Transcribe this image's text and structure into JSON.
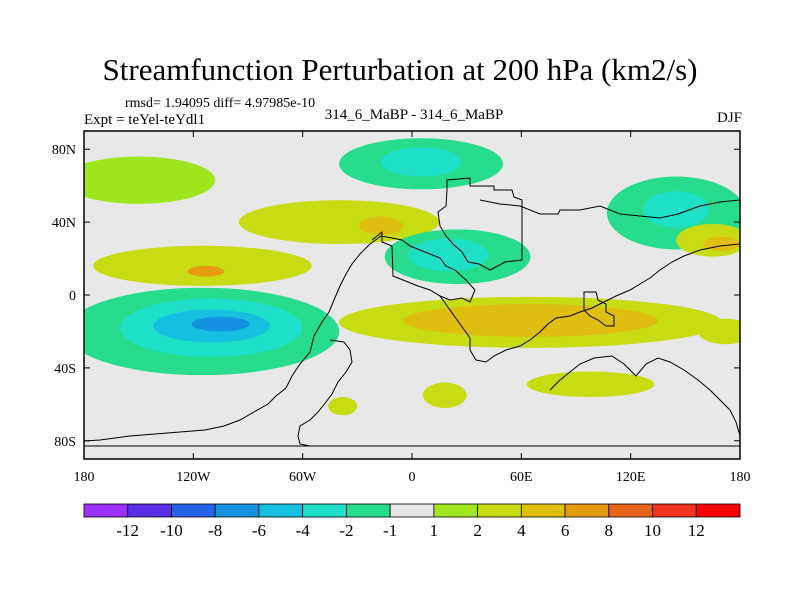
{
  "chart_data": {
    "type": "heatmap",
    "title": "Streamfunction Perturbation at 200 hPa (km2/s)",
    "stats_text": "rmsd= 1.94095 diff= 4.97985e-10",
    "left_label": "Expt = teYel-teYdl1",
    "center_label": "314_6_MaBP - 314_6_MaBP",
    "right_label": "DJF",
    "x_axis": {
      "range": [
        -180,
        180
      ],
      "ticks": [
        -180,
        -120,
        -60,
        0,
        60,
        120,
        180
      ],
      "tick_labels": [
        "180",
        "120W",
        "60W",
        "0",
        "60E",
        "120E",
        "180"
      ]
    },
    "y_axis": {
      "range": [
        -90,
        90
      ],
      "ticks": [
        80,
        40,
        0,
        -40,
        -80
      ],
      "tick_labels": [
        "80N",
        "40N",
        "0",
        "40S",
        "80S"
      ]
    },
    "colorbar": {
      "labels": [
        "-12",
        "-10",
        "-8",
        "-6",
        "-4",
        "-2",
        "-1",
        "1",
        "2",
        "4",
        "6",
        "8",
        "10",
        "12"
      ],
      "colors": [
        "#9b30ff",
        "#5a2ee6",
        "#2463e8",
        "#1490e0",
        "#17bfe0",
        "#1ee0c8",
        "#27dc8c",
        "#e8e8e8",
        "#a0e61e",
        "#c8dc14",
        "#e0be10",
        "#e69a10",
        "#e8641a",
        "#f0321e",
        "#ff0000"
      ]
    },
    "features": [
      {
        "name": "north-pacific-positive",
        "level": "1",
        "lon": -150,
        "lat": 63,
        "rx": 42,
        "ry": 13
      },
      {
        "name": "north-atlantic-positive",
        "level": "2",
        "lon": -40,
        "lat": 40,
        "rx": 55,
        "ry": 12
      },
      {
        "name": "north-atlantic-core",
        "level": "4",
        "lon": -17,
        "lat": 38,
        "rx": 12,
        "ry": 5
      },
      {
        "name": "tropical-pacific-positive",
        "level": "2",
        "lon": -115,
        "lat": 16,
        "rx": 60,
        "ry": 11
      },
      {
        "name": "tropical-pacific-core",
        "level": "6",
        "lon": -113,
        "lat": 13,
        "rx": 10,
        "ry": 3
      },
      {
        "name": "arctic-negative",
        "level": "-1",
        "lon": 5,
        "lat": 72,
        "rx": 45,
        "ry": 14
      },
      {
        "name": "arctic-core",
        "level": "-2",
        "lon": 5,
        "lat": 73,
        "rx": 22,
        "ry": 8
      },
      {
        "name": "africa-negative",
        "level": "-1",
        "lon": 25,
        "lat": 21,
        "rx": 40,
        "ry": 15
      },
      {
        "name": "africa-core",
        "level": "-2",
        "lon": 20,
        "lat": 22,
        "rx": 22,
        "ry": 9
      },
      {
        "name": "east-asia-negative",
        "level": "-1",
        "lon": 145,
        "lat": 45,
        "rx": 38,
        "ry": 20
      },
      {
        "name": "east-asia-core",
        "level": "-2",
        "lon": 145,
        "lat": 47,
        "rx": 18,
        "ry": 10
      },
      {
        "name": "south-pacific-negative",
        "level": "-1",
        "lon": -115,
        "lat": -20,
        "rx": 75,
        "ry": 24
      },
      {
        "name": "south-pacific-mid",
        "level": "-2",
        "lon": -110,
        "lat": -18,
        "rx": 50,
        "ry": 16
      },
      {
        "name": "south-pacific-strong",
        "level": "-4",
        "lon": -110,
        "lat": -17,
        "rx": 32,
        "ry": 9
      },
      {
        "name": "south-pacific-core",
        "level": "-6",
        "lon": -105,
        "lat": -16,
        "rx": 16,
        "ry": 4
      },
      {
        "name": "indian-ocean-positive",
        "level": "2",
        "lon": 65,
        "lat": -15,
        "rx": 105,
        "ry": 14
      },
      {
        "name": "indian-ocean-core",
        "level": "4",
        "lon": 65,
        "lat": -14,
        "rx": 70,
        "ry": 9
      },
      {
        "name": "south-atlantic-positive",
        "level": "2",
        "lon": -38,
        "lat": -61,
        "rx": 8,
        "ry": 5
      },
      {
        "name": "southern-indian-positive",
        "level": "2",
        "lon": 18,
        "lat": -55,
        "rx": 12,
        "ry": 7
      },
      {
        "name": "southern-indian-positive-2",
        "level": "2",
        "lon": 98,
        "lat": -49,
        "rx": 35,
        "ry": 7
      },
      {
        "name": "north-pacific-east-positive",
        "level": "2",
        "lon": 165,
        "lat": 30,
        "rx": 20,
        "ry": 9
      },
      {
        "name": "north-pacific-east-core",
        "level": "4",
        "lon": 170,
        "lat": 28,
        "rx": 10,
        "ry": 4
      },
      {
        "name": "equatorial-east-positive",
        "level": "2",
        "lon": 172,
        "lat": -20,
        "rx": 15,
        "ry": 7
      }
    ]
  }
}
